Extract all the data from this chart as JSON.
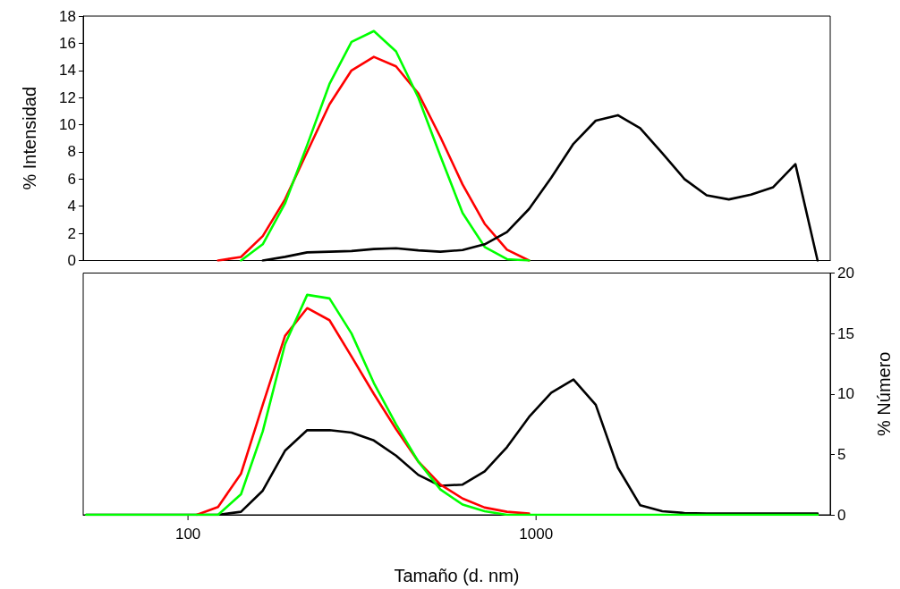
{
  "chart_data": [
    {
      "type": "line",
      "ylabel": "% Intensidad",
      "x": [
        122,
        142,
        164,
        190,
        220,
        255,
        295,
        342,
        396,
        459,
        531,
        615,
        712,
        825,
        955,
        1106,
        1281,
        1484,
        1718,
        1990,
        2305,
        2669,
        3091,
        3580,
        4145,
        4801,
        5560,
        6439
      ],
      "series": [
        {
          "color": "#ff0000",
          "values": [
            0,
            0.26,
            1.8,
            4.5,
            8.0,
            11.5,
            14.0,
            15.0,
            14.3,
            12.3,
            9.1,
            5.6,
            2.7,
            0.8,
            0,
            null,
            null,
            null,
            null,
            null,
            null,
            null,
            null,
            null,
            null,
            null,
            null,
            null
          ]
        },
        {
          "color": "#00ff00",
          "values": [
            null,
            0,
            1.2,
            4.2,
            8.5,
            13.0,
            16.1,
            16.9,
            15.4,
            12.0,
            7.7,
            3.5,
            1.0,
            0.1,
            0,
            null,
            null,
            null,
            null,
            null,
            null,
            null,
            null,
            null,
            null,
            null,
            null,
            null
          ]
        },
        {
          "color": "#000000",
          "values": [
            null,
            null,
            0,
            0.27,
            0.6,
            0.65,
            0.7,
            0.85,
            0.9,
            0.75,
            0.65,
            0.77,
            1.2,
            2.1,
            3.8,
            6.1,
            8.6,
            10.3,
            10.7,
            9.75,
            7.9,
            6.0,
            4.8,
            4.5,
            4.85,
            5.4,
            7.1,
            0
          ]
        }
      ],
      "log": "x",
      "xlim": [
        50,
        7000
      ],
      "ylim": [
        0,
        18
      ],
      "yticks": [
        0,
        2,
        4,
        6,
        8,
        10,
        12,
        14,
        16,
        18
      ],
      "tick_labels": "y",
      "marker": "none",
      "line_style": "solid"
    },
    {
      "type": "line",
      "xlabel": "Tamaño (d. nm)",
      "y2label": "% Número",
      "x": [
        51,
        59,
        68,
        79,
        91,
        106,
        122,
        142,
        164,
        190,
        220,
        255,
        295,
        342,
        396,
        459,
        531,
        615,
        712,
        825,
        955,
        1106,
        1281,
        1484,
        1718,
        1990,
        2305,
        2669,
        3091,
        3580,
        4145,
        4801,
        5560,
        6439
      ],
      "series": [
        {
          "color": "#000000",
          "axis": "y2",
          "values": [
            0,
            0,
            0,
            0,
            0,
            0,
            0,
            0.25,
            2.0,
            5.3,
            7.0,
            7.0,
            6.8,
            6.15,
            4.9,
            3.3,
            2.4,
            2.5,
            3.6,
            5.6,
            8.1,
            10.1,
            11.2,
            9.1,
            3.9,
            0.8,
            0.3,
            0.15,
            0.1,
            0.1,
            0.1,
            0.1,
            0.1,
            0.1
          ]
        },
        {
          "color": "#ff0000",
          "axis": "y2",
          "values": [
            null,
            null,
            null,
            null,
            null,
            0,
            0.65,
            3.4,
            9.1,
            14.8,
            17.1,
            16.1,
            13.1,
            10.0,
            7.1,
            4.4,
            2.5,
            1.35,
            0.6,
            0.25,
            0.1,
            null,
            null,
            null,
            null,
            null,
            null,
            null,
            null,
            null,
            null,
            null,
            null,
            null
          ]
        },
        {
          "color": "#00ff00",
          "axis": "y2",
          "values": [
            0,
            0,
            0,
            0,
            0,
            0,
            0,
            1.7,
            6.9,
            14.1,
            18.2,
            17.9,
            15.0,
            10.9,
            7.5,
            4.4,
            2.1,
            0.85,
            0.3,
            0,
            0,
            0,
            0,
            0,
            0,
            0,
            0,
            0,
            0,
            0,
            0,
            0,
            0,
            0
          ]
        }
      ],
      "log": "x",
      "xlim": [
        50,
        7000
      ],
      "xticks": [
        100,
        1000
      ],
      "y2lim": [
        0,
        20
      ],
      "y2ticks": [
        0,
        5,
        10,
        15,
        20
      ],
      "marker": "none",
      "line_style": "solid"
    }
  ]
}
